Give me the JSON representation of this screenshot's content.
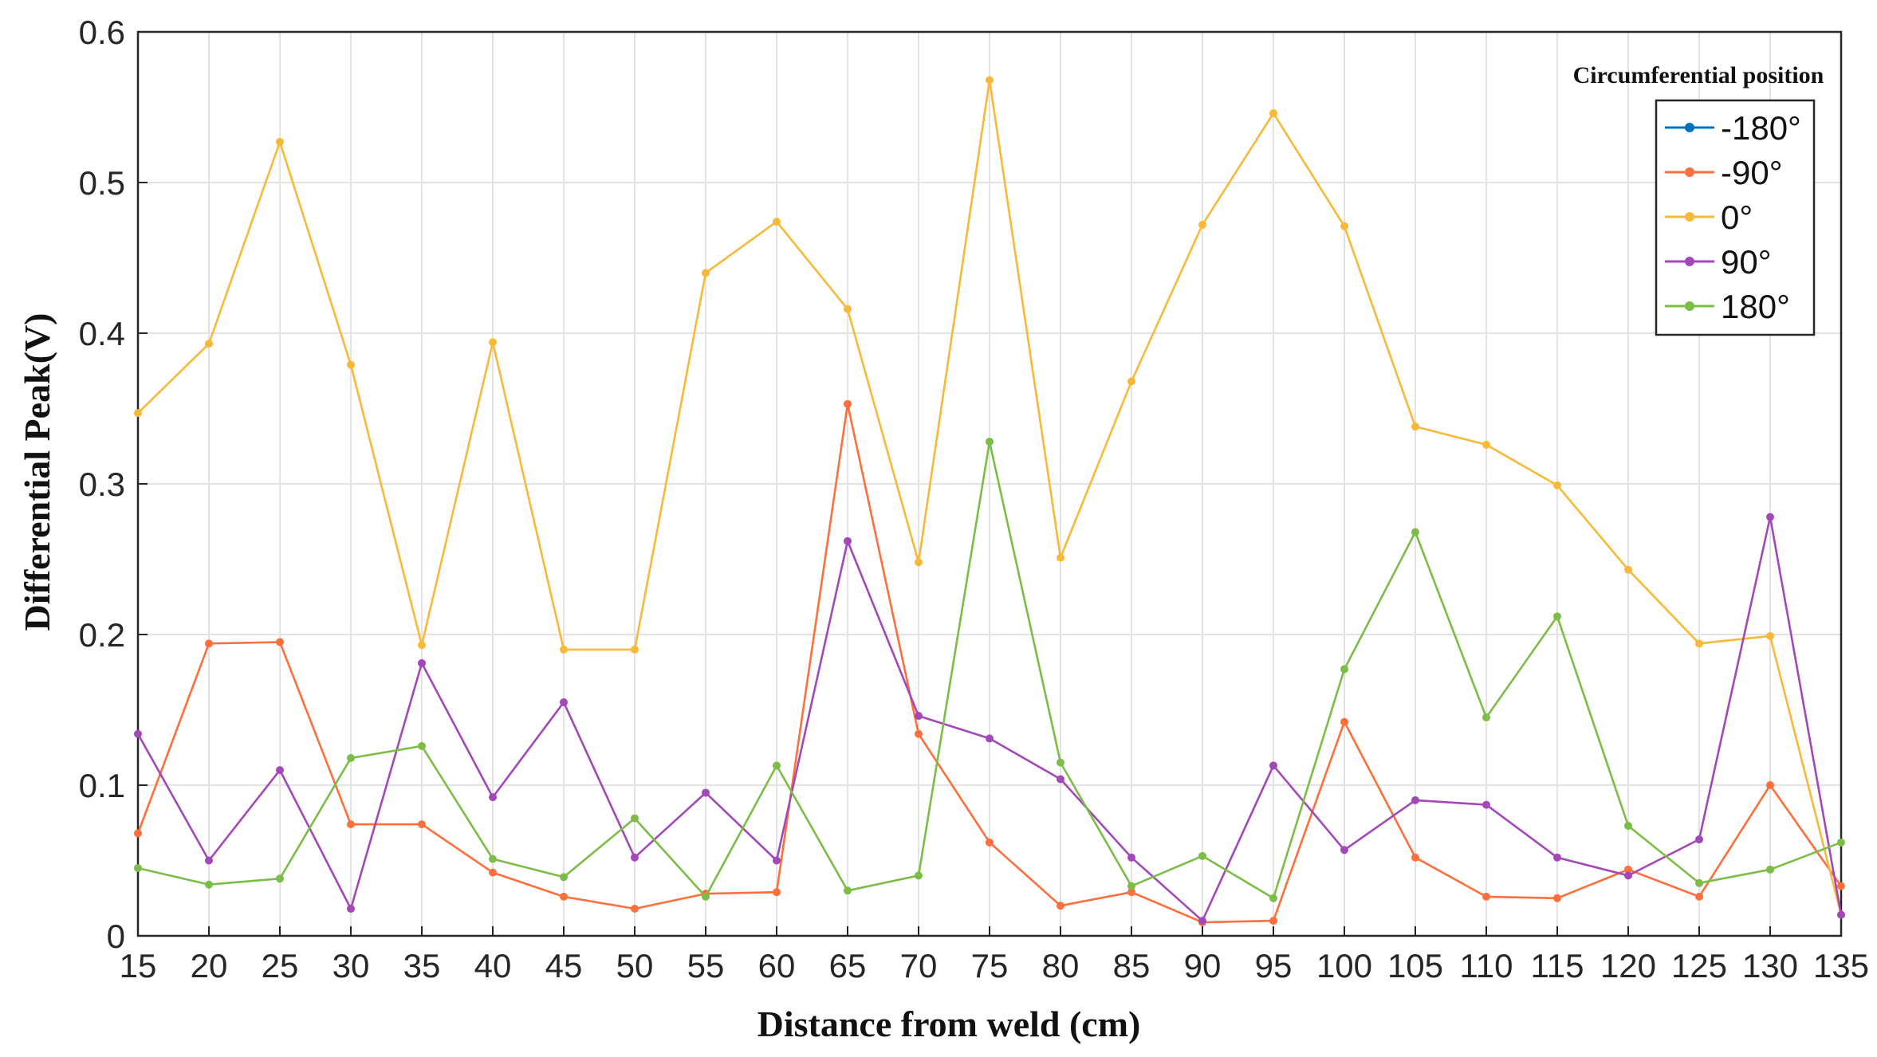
{
  "chart_data": {
    "type": "line",
    "title": "",
    "xlabel": "Distance from weld (cm)",
    "ylabel": "Differential Peak(V)",
    "xlim": [
      15,
      135
    ],
    "ylim": [
      0,
      0.6
    ],
    "grid": true,
    "x": [
      15,
      20,
      25,
      30,
      35,
      40,
      45,
      50,
      55,
      60,
      65,
      70,
      75,
      80,
      85,
      90,
      95,
      100,
      105,
      110,
      115,
      120,
      125,
      130,
      135
    ],
    "x_ticks": [
      "15",
      "20",
      "25",
      "30",
      "35",
      "40",
      "45",
      "50",
      "55",
      "60",
      "65",
      "70",
      "75",
      "80",
      "85",
      "90",
      "95",
      "100",
      "105",
      "110",
      "115",
      "120",
      "125",
      "130",
      "135"
    ],
    "y_ticks": [
      0,
      0.1,
      0.2,
      0.3,
      0.4,
      0.5,
      0.6
    ],
    "y_tick_labels": [
      "0",
      "0.1",
      "0.2",
      "0.3",
      "0.4",
      "0.5",
      "0.6"
    ],
    "legend": {
      "title": "Circumferential position",
      "placement": "top-right"
    },
    "series": [
      {
        "name": "-180°",
        "color": "#0072BD",
        "values": [
          null,
          null,
          null,
          null,
          null,
          null,
          null,
          null,
          null,
          null,
          null,
          null,
          null,
          null,
          null,
          null,
          null,
          null,
          null,
          null,
          null,
          null,
          null,
          null,
          null
        ]
      },
      {
        "name": "-90°",
        "color": "#FF6F3C",
        "values": [
          0.068,
          0.194,
          0.195,
          0.074,
          0.074,
          0.042,
          0.026,
          0.018,
          0.028,
          0.029,
          0.353,
          0.134,
          0.062,
          0.02,
          0.029,
          0.009,
          0.01,
          0.142,
          0.052,
          0.026,
          0.025,
          0.044,
          0.026,
          0.1,
          0.033
        ]
      },
      {
        "name": "0°",
        "color": "#F9B938",
        "values": [
          0.347,
          0.393,
          0.527,
          0.379,
          0.193,
          0.394,
          0.19,
          0.19,
          0.44,
          0.474,
          0.416,
          0.248,
          0.568,
          0.251,
          0.368,
          0.472,
          0.546,
          0.471,
          0.338,
          0.326,
          0.299,
          0.243,
          0.194,
          0.199,
          0.014
        ]
      },
      {
        "name": "90°",
        "color": "#A248B8",
        "values": [
          0.134,
          0.05,
          0.11,
          0.018,
          0.181,
          0.092,
          0.155,
          0.052,
          0.095,
          0.05,
          0.262,
          0.146,
          0.131,
          0.104,
          0.052,
          0.01,
          0.113,
          0.057,
          0.09,
          0.087,
          0.052,
          0.04,
          0.064,
          0.278,
          0.014
        ]
      },
      {
        "name": "180°",
        "color": "#7BBD47",
        "values": [
          0.045,
          0.034,
          0.038,
          0.118,
          0.126,
          0.051,
          0.039,
          0.078,
          0.026,
          0.113,
          0.03,
          0.04,
          0.328,
          0.115,
          0.033,
          0.053,
          0.025,
          0.177,
          0.268,
          0.145,
          0.212,
          0.073,
          0.035,
          0.044,
          0.062
        ]
      }
    ]
  }
}
